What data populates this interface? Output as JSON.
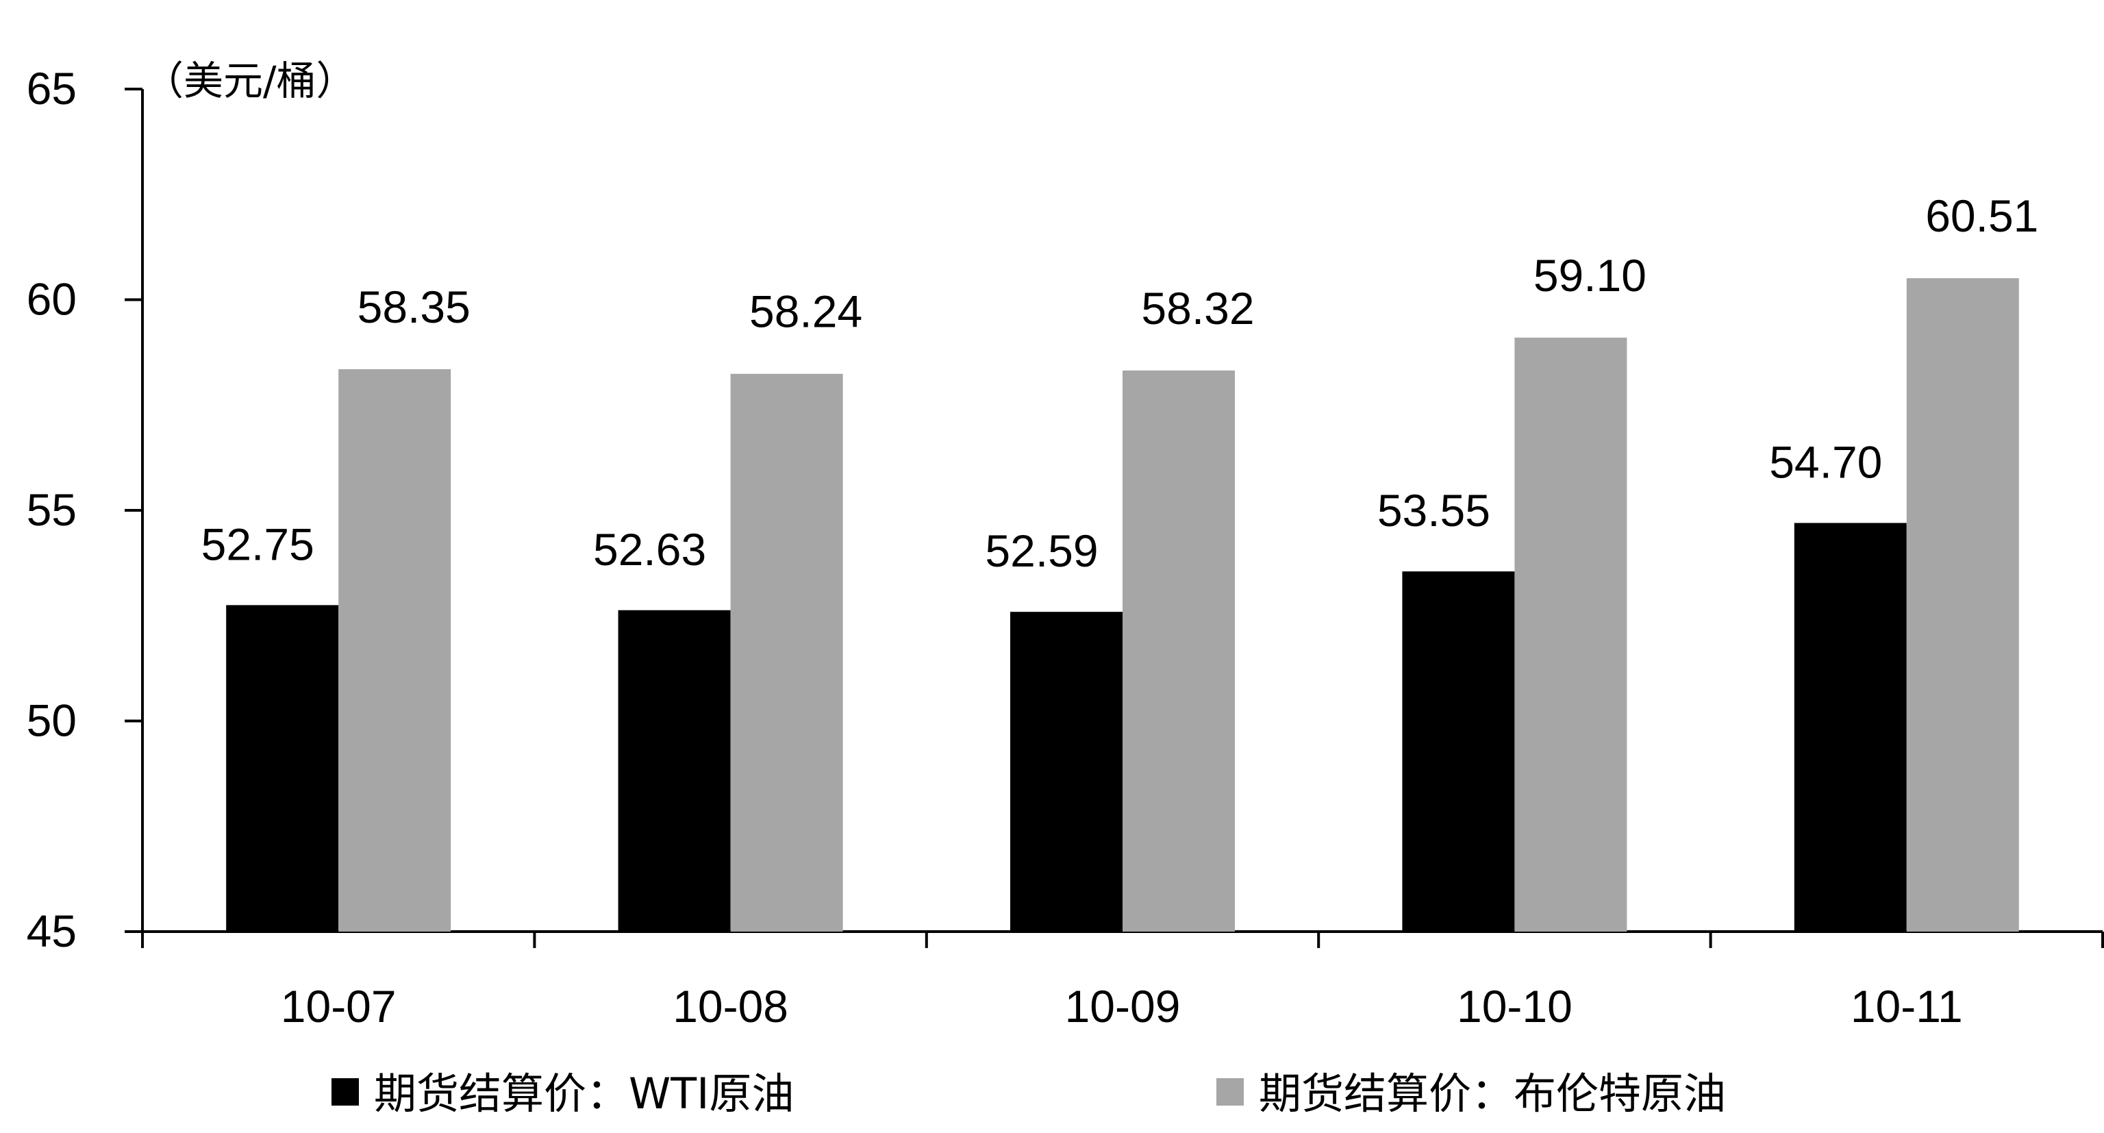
{
  "chart_data": {
    "type": "bar",
    "title": "",
    "xlabel": "",
    "ylabel": "（美元/桶）",
    "ylim": [
      45,
      65
    ],
    "yticks": [
      45,
      50,
      55,
      60,
      65
    ],
    "categories": [
      "10-07",
      "10-08",
      "10-09",
      "10-10",
      "10-11"
    ],
    "series": [
      {
        "name": "期货结算价：WTI原油",
        "color": "#000000",
        "values": [
          52.75,
          52.63,
          52.59,
          53.55,
          54.7
        ],
        "labels": [
          "52.75",
          "52.63",
          "52.59",
          "53.55",
          "54.70"
        ]
      },
      {
        "name": "期货结算价：布伦特原油",
        "color": "#a6a6a6",
        "values": [
          58.35,
          58.24,
          58.32,
          59.1,
          60.51
        ],
        "labels": [
          "58.35",
          "58.24",
          "58.32",
          "59.10",
          "60.51"
        ]
      }
    ],
    "grid": false,
    "legend_position": "bottom"
  }
}
